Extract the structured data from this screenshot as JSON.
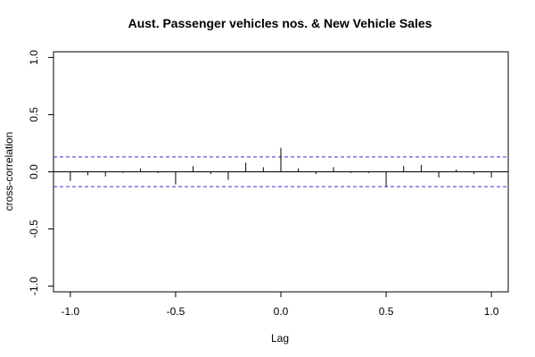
{
  "chart_data": {
    "type": "bar",
    "title": "Aust. Passenger vehicles nos. & New Vehicle Sales",
    "xlabel": "Lag",
    "ylabel": "cross-correlation",
    "xlim": [
      -1.08,
      1.08
    ],
    "ylim": [
      -1.05,
      1.05
    ],
    "xticks": [
      -1.0,
      -0.5,
      0.0,
      0.5,
      1.0
    ],
    "xtick_labels": [
      "-1.0",
      "-0.5",
      "0.0",
      "0.5",
      "1.0"
    ],
    "yticks": [
      -1.0,
      -0.5,
      0.0,
      0.5,
      1.0
    ],
    "ytick_labels": [
      "-1.0",
      "-0.5",
      "0.0",
      "0.5",
      "1.0"
    ],
    "confidence_band": [
      -0.13,
      0.13
    ],
    "confidence_color": "#3333cc",
    "lags": [
      -1.0,
      -0.9167,
      -0.8333,
      -0.75,
      -0.6667,
      -0.5833,
      -0.5,
      -0.4167,
      -0.3333,
      -0.25,
      -0.1667,
      -0.0833,
      0.0,
      0.0833,
      0.1667,
      0.25,
      0.3333,
      0.4167,
      0.5,
      0.5833,
      0.6667,
      0.75,
      0.8333,
      0.9167,
      1.0
    ],
    "values": [
      -0.08,
      -0.03,
      -0.04,
      -0.01,
      0.03,
      -0.01,
      -0.11,
      0.05,
      -0.02,
      -0.07,
      0.08,
      0.04,
      0.21,
      0.03,
      -0.02,
      0.04,
      -0.01,
      -0.01,
      -0.13,
      0.05,
      0.06,
      -0.05,
      0.02,
      -0.02,
      -0.05
    ],
    "grid": false
  }
}
